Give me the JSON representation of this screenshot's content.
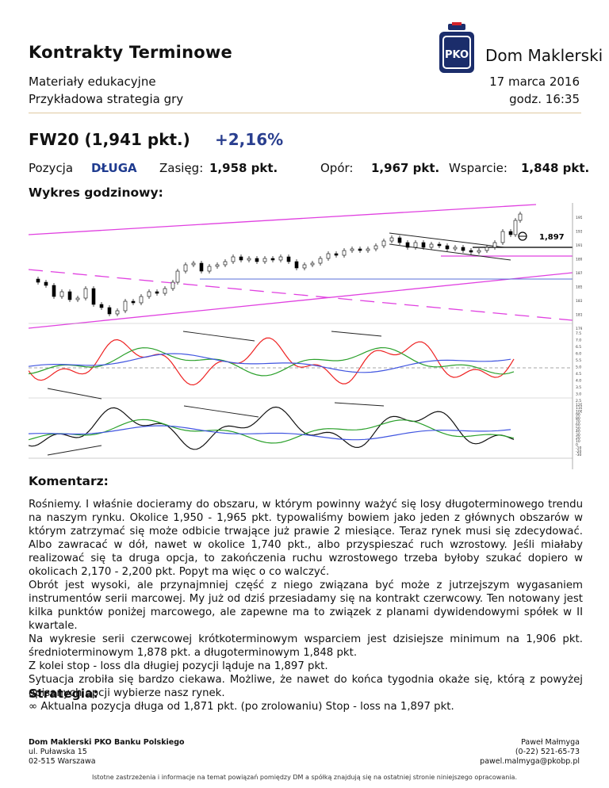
{
  "header": {
    "title": "Kontrakty Terminowe",
    "subtitle_1": "Materiały edukacyjne",
    "subtitle_2": "Przykładowa strategia gry",
    "date": "17 marca 2016",
    "time": "godz. 16:35",
    "brand": "Dom Maklerski",
    "logo_text": "PKO",
    "logo_colors": {
      "navy": "#1b2d6b",
      "red": "#d2232a"
    }
  },
  "instrument": {
    "name": "FW20 (1,941 pkt.)",
    "change": "+2,16%",
    "position_label": "Pozycja",
    "position_value": "DŁUGA",
    "range_label": "Zasięg:",
    "range_value": "1,958 pkt.",
    "resistance_label": "Opór:",
    "resistance_value": "1,967 pkt.",
    "support_label": "Wsparcie:",
    "support_value": "1,848 pkt."
  },
  "chart": {
    "heading": "Wykres godzinowy:",
    "annotation": "1,897",
    "price_axis": [
      "1950",
      "1930",
      "1910",
      "1890",
      "1870",
      "1850",
      "1830",
      "1810",
      "1790"
    ],
    "osc1_axis": [
      "7.5",
      "7.0",
      "6.5",
      "6.0",
      "5.5",
      "5.0",
      "4.5",
      "4.0",
      "3.5",
      "3.0",
      "2.5"
    ],
    "osc2_axis": [
      "120",
      "110",
      "100",
      "90",
      "80",
      "70",
      "60",
      "50",
      "40",
      "30",
      "20",
      "10",
      "0",
      "-10",
      "-20",
      "-30"
    ]
  },
  "comment": {
    "heading": "Komentarz:",
    "paragraphs": [
      "Rośniemy. I właśnie docieramy do obszaru, w którym powinny ważyć się losy długoterminowego trendu na naszym rynku. Okolice 1,950 - 1,965 pkt. typowaliśmy bowiem jako jeden z głównych obszarów w którym zatrzymać się może odbicie trwające już prawie 2 miesiące. Teraz rynek musi się zdecydować. Albo zawracać w dół, nawet w okolice 1,740 pkt., albo przyspieszać ruch wzrostowy. Jeśli miałaby realizować się ta druga opcja, to zakończenia ruchu wzrostowego trzeba byłoby szukać dopiero w okolicach 2,170 - 2,200 pkt. Popyt ma więc o co walczyć.",
      "Obrót jest wysoki, ale przynajmniej część z niego związana być może z jutrzejszym wygasaniem instrumentów serii marcowej. My już od dziś przesiadamy się na kontrakt czerwcowy. Ten notowany jest kilka punktów poniżej marcowego, ale zapewne ma to związek z planami dywidendowymi spółek w II kwartale.",
      "Na wykresie serii czerwcowej krótkoterminowym wsparciem jest dzisiejsze minimum na 1,906 pkt. średnioterminowym 1,878 pkt. a długoterminowym 1,848 pkt.",
      "Z kolei stop - loss dla długiej pozycji ląduje na 1,897 pkt.",
      "Sytuacja zrobiła się bardzo ciekawa. Możliwe, że nawet do końca tygodnia okaże się, którą z powyżej opisanych opcji wybierze nasz rynek."
    ]
  },
  "strategy": {
    "heading": "Strategia:",
    "bullet": "∞",
    "item": "Aktualna pozycja długa od 1,871 pkt. (po zrolowaniu) Stop - loss na 1,897 pkt."
  },
  "footer": {
    "company_1": "Dom Maklerski PKO Banku Polskiego",
    "company_2": "ul. Puławska 15",
    "company_3": "02-515 Warszawa",
    "person_1": "Paweł Małmyga",
    "person_2": "(0-22) 521-65-73",
    "person_3": "pawel.malmyga@pkobp.pl",
    "disclaimer": "Istotne zastrzeżenia i informacje na temat powiązań pomiędzy DM a spółką znajdują się na ostatniej stronie niniejszego opracowania."
  }
}
